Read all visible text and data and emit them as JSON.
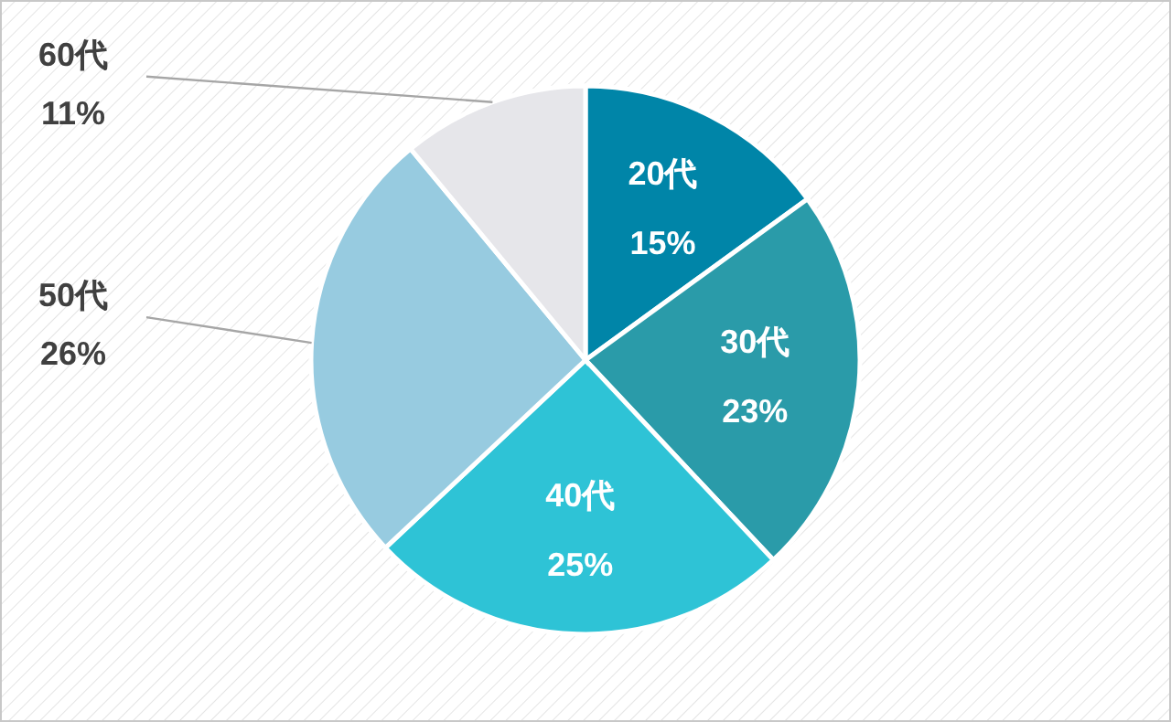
{
  "chart_data": {
    "type": "pie",
    "categories": [
      "20代",
      "30代",
      "40代",
      "50代",
      "60代"
    ],
    "values": [
      15,
      23,
      25,
      26,
      11
    ],
    "value_labels": [
      "15%",
      "23%",
      "25%",
      "26%",
      "11%"
    ],
    "colors": [
      "#0085a8",
      "#2a9ba9",
      "#2ec3d6",
      "#97cbe0",
      "#e6e6ea"
    ]
  }
}
